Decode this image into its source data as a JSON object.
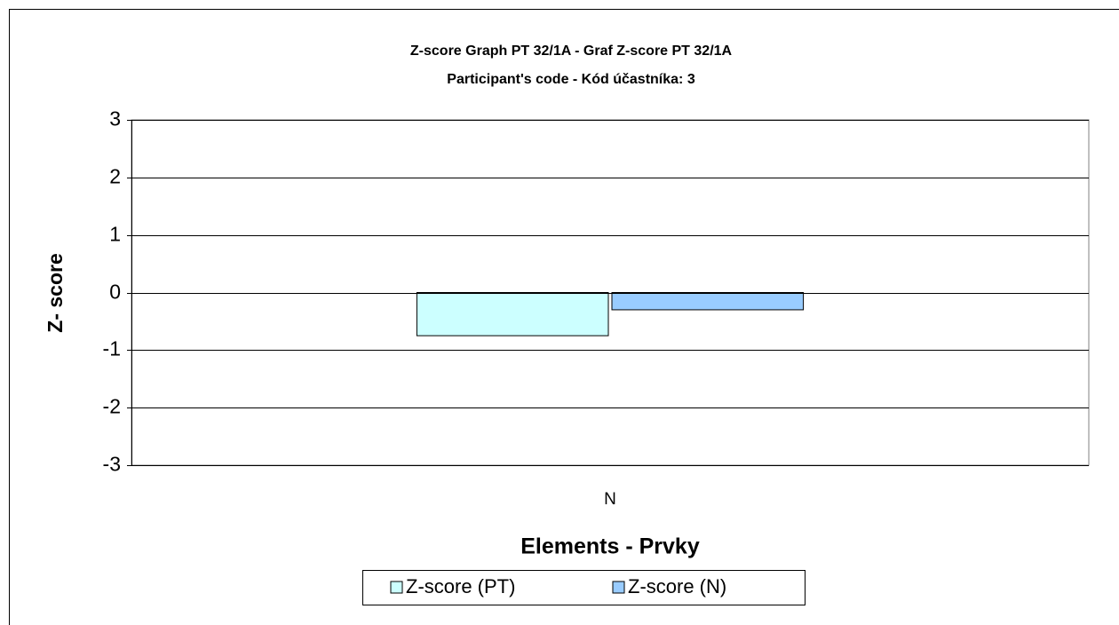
{
  "chart_data": {
    "type": "bar",
    "title": "Z-score Graph PT 32/1A - Graf Z-score PT 32/1A",
    "subtitle": "Participant's code - Kód účastníka:  3",
    "x_label": "Elements - Prvky",
    "y_label": "Z- score",
    "categories": [
      "N"
    ],
    "series": [
      {
        "name": "Z-score (PT)",
        "color": "#ccffff",
        "values": [
          -0.75
        ]
      },
      {
        "name": "Z-score (N)",
        "color": "#99ccff",
        "values": [
          -0.3
        ]
      }
    ],
    "ylim": [
      -3,
      3
    ],
    "yticks": [
      -3,
      -2,
      -1,
      0,
      1,
      2,
      3
    ],
    "grid": true,
    "legend": "bottom"
  }
}
